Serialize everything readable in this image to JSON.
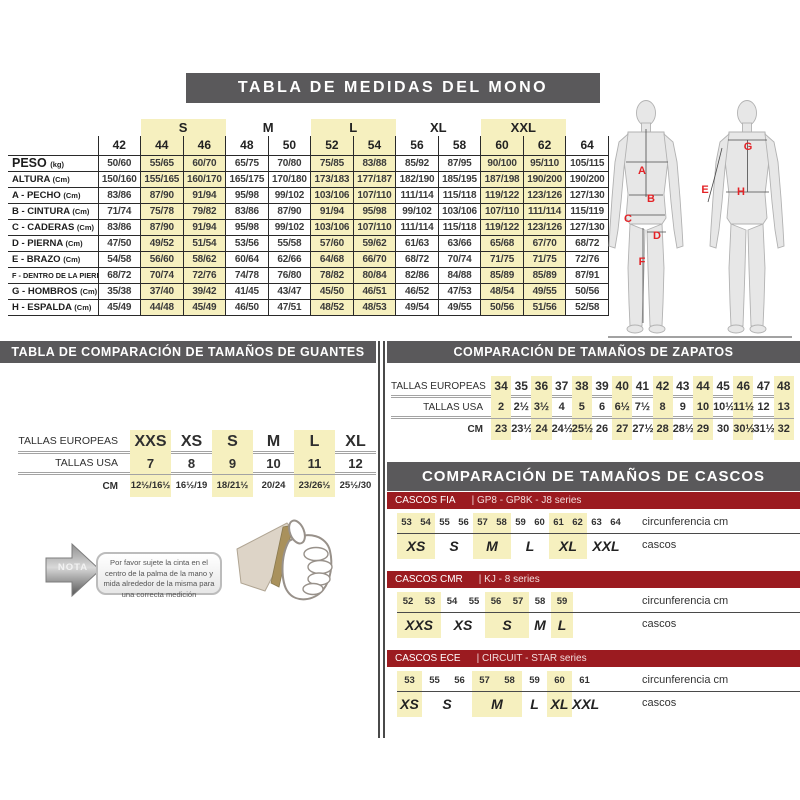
{
  "title": "TABLA DE MEDIDAS DEL MONO",
  "colors": {
    "bar_gray": "#5a595b",
    "dark_red": "#9b1b20",
    "highlight_yellow": "#f6f0bf",
    "letter_red": "#e32226"
  },
  "mono_table": {
    "groups": [
      {
        "label": "",
        "span": 1,
        "hl": false
      },
      {
        "label": "S",
        "span": 2,
        "hl": true
      },
      {
        "label": "M",
        "span": 2,
        "hl": false
      },
      {
        "label": "L",
        "span": 2,
        "hl": true
      },
      {
        "label": "XL",
        "span": 2,
        "hl": false
      },
      {
        "label": "XXL",
        "span": 2,
        "hl": true
      },
      {
        "label": "",
        "span": 1,
        "hl": false
      }
    ],
    "sizes": [
      "42",
      "44",
      "46",
      "48",
      "50",
      "52",
      "54",
      "56",
      "58",
      "60",
      "62",
      "64"
    ],
    "highlight_cols": [
      1,
      2,
      5,
      6,
      9,
      10
    ],
    "rows": [
      {
        "label": "PESO",
        "unit": "(kg)",
        "values": [
          "50/60",
          "55/65",
          "60/70",
          "65/75",
          "70/80",
          "75/85",
          "83/88",
          "85/92",
          "87/95",
          "90/100",
          "95/110",
          "105/115"
        ]
      },
      {
        "label": "ALTURA",
        "unit": "(Cm)",
        "values": [
          "150/160",
          "155/165",
          "160/170",
          "165/175",
          "170/180",
          "173/183",
          "177/187",
          "182/190",
          "185/195",
          "187/198",
          "190/200",
          "190/200"
        ]
      },
      {
        "label": "A - PECHO",
        "unit": "(Cm)",
        "values": [
          "83/86",
          "87/90",
          "91/94",
          "95/98",
          "99/102",
          "103/106",
          "107/110",
          "111/114",
          "115/118",
          "119/122",
          "123/126",
          "127/130"
        ]
      },
      {
        "label": "B - CINTURA",
        "unit": "(Cm)",
        "values": [
          "71/74",
          "75/78",
          "79/82",
          "83/86",
          "87/90",
          "91/94",
          "95/98",
          "99/102",
          "103/106",
          "107/110",
          "111/114",
          "115/119"
        ]
      },
      {
        "label": "C - CADERAS",
        "unit": "(Cm)",
        "values": [
          "83/86",
          "87/90",
          "91/94",
          "95/98",
          "99/102",
          "103/106",
          "107/110",
          "111/114",
          "115/118",
          "119/122",
          "123/126",
          "127/130"
        ]
      },
      {
        "label": "D - PIERNA",
        "unit": "(Cm)",
        "values": [
          "47/50",
          "49/52",
          "51/54",
          "53/56",
          "55/58",
          "57/60",
          "59/62",
          "61/63",
          "63/66",
          "65/68",
          "67/70",
          "68/72"
        ]
      },
      {
        "label": "E - BRAZO",
        "unit": "(Cm)",
        "values": [
          "54/58",
          "56/60",
          "58/62",
          "60/64",
          "62/66",
          "64/68",
          "66/70",
          "68/72",
          "70/74",
          "71/75",
          "71/75",
          "72/76"
        ]
      },
      {
        "label": "F - DENTRO DE LA PIERNA",
        "unit": "(Cm)",
        "values": [
          "68/72",
          "70/74",
          "72/76",
          "74/78",
          "76/80",
          "78/82",
          "80/84",
          "82/86",
          "84/88",
          "85/89",
          "85/89",
          "87/91"
        ]
      },
      {
        "label": "G - HOMBROS",
        "unit": "(Cm)",
        "values": [
          "35/38",
          "37/40",
          "39/42",
          "41/45",
          "43/47",
          "45/50",
          "46/51",
          "46/52",
          "47/53",
          "48/54",
          "49/55",
          "50/56"
        ]
      },
      {
        "label": "H - ESPALDA",
        "unit": "(Cm)",
        "values": [
          "45/49",
          "44/48",
          "45/49",
          "46/50",
          "47/51",
          "48/52",
          "48/53",
          "49/54",
          "49/55",
          "50/56",
          "51/56",
          "52/58"
        ]
      }
    ]
  },
  "body_diagram": {
    "letters": [
      "A",
      "B",
      "C",
      "D",
      "F",
      "G",
      "E",
      "H"
    ]
  },
  "gloves": {
    "title": "TABLA DE COMPARACIÓN DE TAMAÑOS DE GUANTES",
    "highlight_cols": [
      0,
      2,
      4
    ],
    "rows": [
      {
        "label": "TALLAS EUROPEAS",
        "values": [
          "XXS",
          "XS",
          "S",
          "M",
          "L",
          "XL"
        ]
      },
      {
        "label": "TALLAS USA",
        "values": [
          "7",
          "8",
          "9",
          "10",
          "11",
          "12"
        ]
      },
      {
        "label": "CM",
        "values": [
          "12½/16½",
          "16½/19",
          "18/21½",
          "20/24",
          "23/26½",
          "25½/30"
        ]
      }
    ],
    "note_label": "NOTA",
    "note_text": "Por favor sujete la cinta en el centro de la palma de la mano y mida alrededor de la misma para una correcta medición"
  },
  "shoes": {
    "title": "COMPARACIÓN DE TAMAÑOS DE ZAPATOS",
    "highlight_cols": [
      0,
      2,
      4,
      6,
      8,
      10,
      12,
      14
    ],
    "rows": [
      {
        "label": "TALLAS EUROPEAS",
        "values": [
          "34",
          "35",
          "36",
          "37",
          "38",
          "39",
          "40",
          "41",
          "42",
          "43",
          "44",
          "45",
          "46",
          "47",
          "48"
        ]
      },
      {
        "label": "TALLAS USA",
        "values": [
          "2",
          "2½",
          "3½",
          "4",
          "5",
          "6",
          "6½",
          "7½",
          "8",
          "9",
          "10",
          "10½",
          "11½",
          "12",
          "13"
        ]
      },
      {
        "label": "CM",
        "values": [
          "23",
          "23½",
          "24",
          "24½",
          "25½",
          "26",
          "27",
          "27½",
          "28",
          "28½",
          "29",
          "30",
          "30½",
          "31½",
          "32"
        ]
      }
    ]
  },
  "helmets": {
    "title": "COMPARACIÓN DE TAMAÑOS DE CASCOS",
    "circ_label": "circunferencia cm",
    "size_label": "cascos",
    "sections": [
      {
        "name": "CASCOS FIA",
        "series": "| GP8 - GP8K - J8 series",
        "circumferences": [
          "53",
          "54",
          "55",
          "56",
          "57",
          "58",
          "59",
          "60",
          "61",
          "62",
          "63",
          "64"
        ],
        "sizes": [
          {
            "label": "XS",
            "span": 2,
            "hl": true
          },
          {
            "label": "S",
            "span": 2,
            "hl": false
          },
          {
            "label": "M",
            "span": 2,
            "hl": true
          },
          {
            "label": "L",
            "span": 2,
            "hl": false
          },
          {
            "label": "XL",
            "span": 2,
            "hl": true
          },
          {
            "label": "XXL",
            "span": 2,
            "hl": false
          }
        ]
      },
      {
        "name": "CASCOS CMR",
        "series": "| KJ - 8 series",
        "circumferences": [
          "52",
          "53",
          "54",
          "55",
          "56",
          "57",
          "58",
          "59"
        ],
        "sizes": [
          {
            "label": "XXS",
            "span": 2,
            "hl": true
          },
          {
            "label": "XS",
            "span": 2,
            "hl": false
          },
          {
            "label": "S",
            "span": 2,
            "hl": true
          },
          {
            "label": "M",
            "span": 1,
            "hl": false
          },
          {
            "label": "L",
            "span": 1,
            "hl": true
          }
        ]
      },
      {
        "name": "CASCOS ECE",
        "series": "| CIRCUIT - STAR series",
        "circumferences": [
          "53",
          "55",
          "56",
          "57",
          "58",
          "59",
          "60",
          "61"
        ],
        "sizes": [
          {
            "label": "XS",
            "span": 1,
            "hl": true
          },
          {
            "label": "S",
            "span": 2,
            "hl": false
          },
          {
            "label": "M",
            "span": 2,
            "hl": true
          },
          {
            "label": "L",
            "span": 1,
            "hl": false
          },
          {
            "label": "XL",
            "span": 1,
            "hl": true
          },
          {
            "label": "XXL",
            "span": 1,
            "hl": false
          }
        ]
      }
    ]
  }
}
